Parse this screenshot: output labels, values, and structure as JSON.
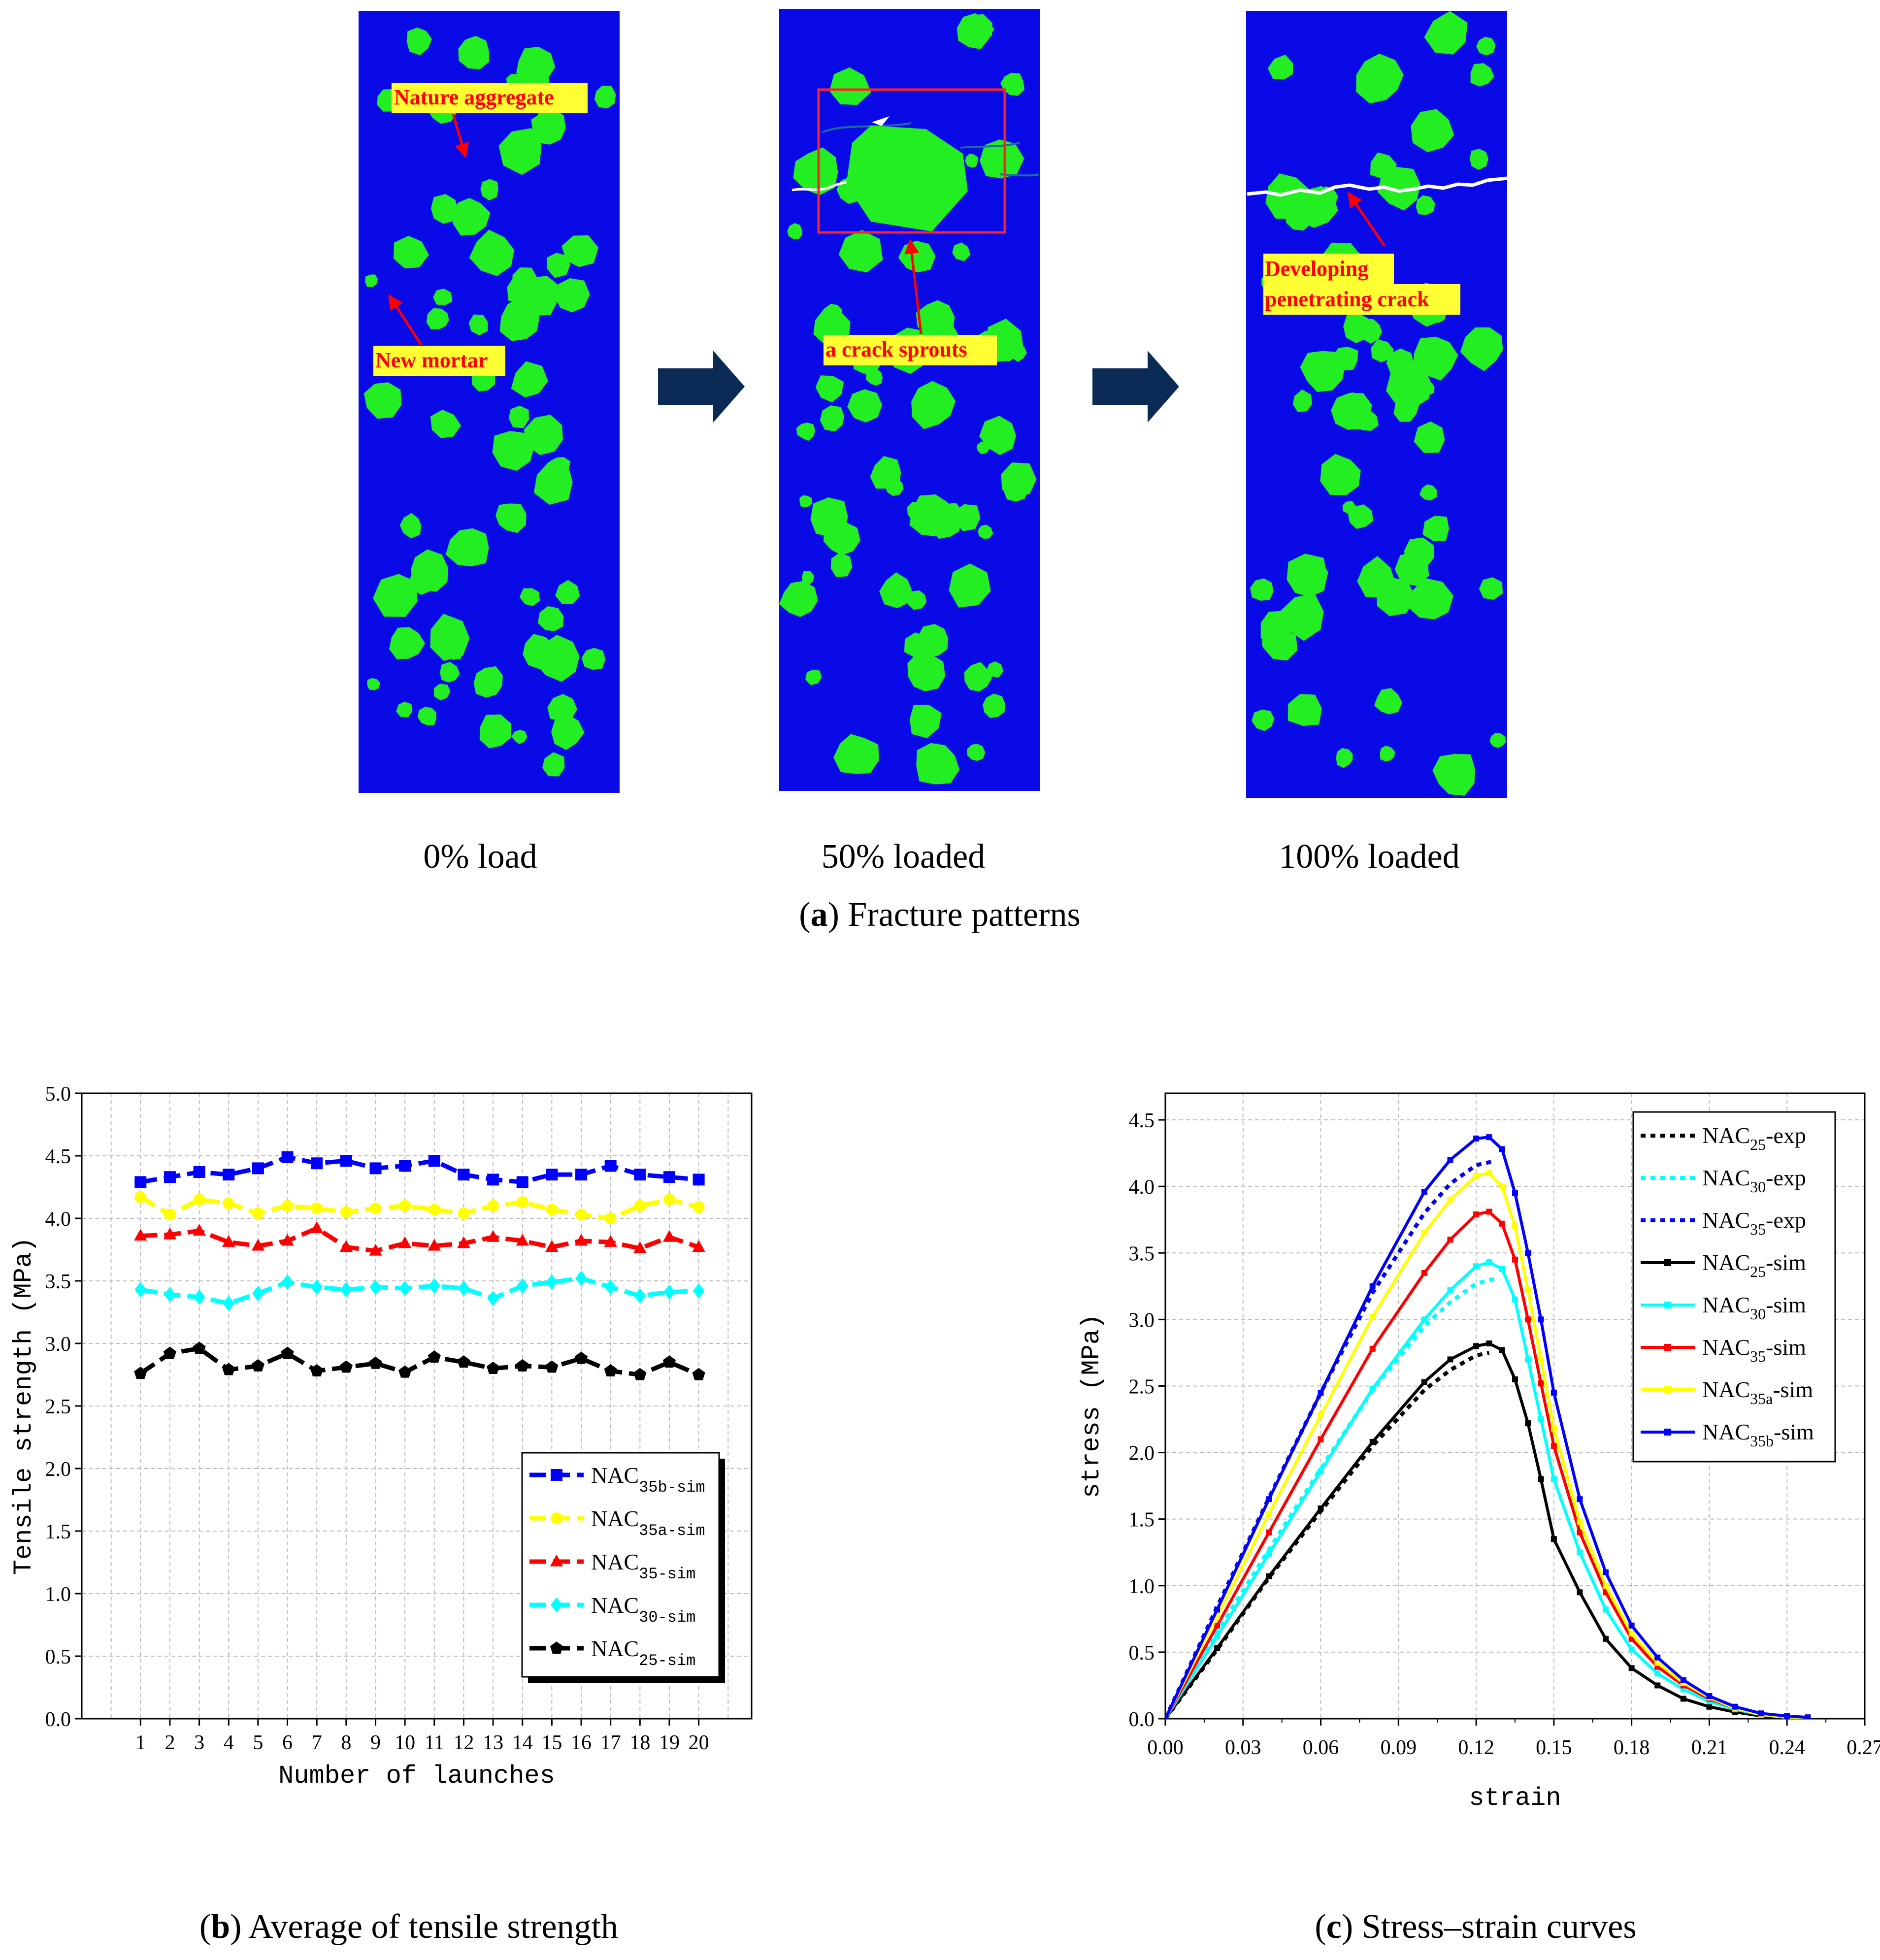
{
  "panel_a": {
    "caption_letter": "a",
    "caption_text": "Fracture patterns",
    "panels": [
      {
        "label": "0% load"
      },
      {
        "label": "50% loaded"
      },
      {
        "label": "100% loaded"
      }
    ],
    "annotations": {
      "nature_aggregate": "Nature aggregate",
      "new_mortar": "New mortar",
      "crack_sprouts": "a crack sprouts",
      "developing_line1": "Developing",
      "developing_line2": "penetrating crack"
    },
    "colors": {
      "mortar": "#0a0ae6",
      "aggregate": "#22ee22",
      "annotation_bg": "#ffff33",
      "annotation_text": "#ff0000",
      "arrow": "#0b2a55"
    }
  },
  "panel_b": {
    "caption_letter": "b",
    "caption_text": "Average of tensile strength"
  },
  "panel_c": {
    "caption_letter": "c",
    "caption_text": "Stress–strain curves"
  },
  "chart_data": [
    {
      "type": "line",
      "id": "b",
      "xlabel": "Number of launches",
      "ylabel": "Tensile strength (MPa)",
      "ylim": [
        0,
        5
      ],
      "yticks": [
        "0.0",
        "0.5",
        "1.0",
        "1.5",
        "2.0",
        "2.5",
        "3.0",
        "3.5",
        "4.0",
        "4.5",
        "5.0"
      ],
      "categories": [
        "1",
        "2",
        "3",
        "4",
        "5",
        "6",
        "7",
        "8",
        "9",
        "10",
        "11",
        "12",
        "13",
        "14",
        "15",
        "16",
        "17",
        "18",
        "19",
        "20"
      ],
      "grid": true,
      "legend_position": "bottom-right",
      "series": [
        {
          "name": "NAC",
          "sub": "35b-sim",
          "color": "#0000ff",
          "marker": "square",
          "values": [
            4.29,
            4.33,
            4.37,
            4.35,
            4.4,
            4.49,
            4.44,
            4.46,
            4.4,
            4.42,
            4.46,
            4.35,
            4.31,
            4.29,
            4.35,
            4.35,
            4.42,
            4.35,
            4.33,
            4.31
          ]
        },
        {
          "name": "NAC",
          "sub": "35a-sim",
          "color": "#ffff00",
          "marker": "circle",
          "values": [
            4.17,
            4.03,
            4.15,
            4.12,
            4.04,
            4.1,
            4.08,
            4.05,
            4.08,
            4.1,
            4.07,
            4.04,
            4.1,
            4.13,
            4.07,
            4.03,
            4.0,
            4.1,
            4.15,
            4.09
          ]
        },
        {
          "name": "NAC",
          "sub": "35-sim",
          "color": "#ff0000",
          "marker": "triangle",
          "values": [
            3.86,
            3.87,
            3.9,
            3.81,
            3.78,
            3.82,
            3.92,
            3.77,
            3.74,
            3.8,
            3.78,
            3.8,
            3.85,
            3.82,
            3.77,
            3.82,
            3.81,
            3.76,
            3.85,
            3.77
          ]
        },
        {
          "name": "NAC",
          "sub": "30-sim",
          "color": "#00ffff",
          "marker": "diamond",
          "values": [
            3.43,
            3.39,
            3.37,
            3.32,
            3.4,
            3.49,
            3.45,
            3.43,
            3.45,
            3.44,
            3.46,
            3.44,
            3.36,
            3.46,
            3.49,
            3.52,
            3.45,
            3.38,
            3.41,
            3.42
          ]
        },
        {
          "name": "NAC",
          "sub": "25-sim",
          "color": "#000000",
          "marker": "pentagon",
          "values": [
            2.76,
            2.92,
            2.96,
            2.79,
            2.82,
            2.92,
            2.78,
            2.81,
            2.84,
            2.77,
            2.89,
            2.85,
            2.8,
            2.82,
            2.81,
            2.88,
            2.78,
            2.75,
            2.85,
            2.75
          ]
        }
      ]
    },
    {
      "type": "line",
      "id": "c",
      "xlabel": "strain",
      "ylabel": "stress (MPa)",
      "xlim": [
        0,
        0.27
      ],
      "ylim": [
        0,
        4.7
      ],
      "xticks": [
        "0.00",
        "0.03",
        "0.06",
        "0.09",
        "0.12",
        "0.15",
        "0.18",
        "0.21",
        "0.24",
        "0.27"
      ],
      "yticks": [
        "0.0",
        "0.5",
        "1.0",
        "1.5",
        "2.0",
        "2.5",
        "3.0",
        "3.5",
        "4.0",
        "4.5"
      ],
      "grid": true,
      "legend_position": "top-right",
      "series": [
        {
          "name": "NAC",
          "sub": "25",
          "suffix": "-exp",
          "color": "#000000",
          "style": "dotted",
          "x": [
            0,
            0.02,
            0.04,
            0.06,
            0.08,
            0.1,
            0.11,
            0.12,
            0.125
          ],
          "y": [
            0,
            0.52,
            1.06,
            1.56,
            2.05,
            2.47,
            2.62,
            2.73,
            2.75
          ]
        },
        {
          "name": "NAC",
          "sub": "30",
          "suffix": "-exp",
          "color": "#00ffff",
          "style": "dotted",
          "x": [
            0,
            0.02,
            0.04,
            0.06,
            0.08,
            0.1,
            0.11,
            0.12,
            0.128
          ],
          "y": [
            0,
            0.65,
            1.27,
            1.88,
            2.47,
            2.95,
            3.13,
            3.27,
            3.31
          ]
        },
        {
          "name": "NAC",
          "sub": "35",
          "suffix": "-exp",
          "color": "#0000ff",
          "style": "dotted",
          "x": [
            0,
            0.02,
            0.04,
            0.06,
            0.08,
            0.1,
            0.11,
            0.12,
            0.127
          ],
          "y": [
            0,
            0.84,
            1.66,
            2.45,
            3.2,
            3.8,
            4.02,
            4.16,
            4.19
          ]
        },
        {
          "name": "NAC",
          "sub": "25",
          "suffix": "-sim",
          "color": "#000000",
          "style": "solid",
          "x": [
            0,
            0.02,
            0.04,
            0.06,
            0.08,
            0.1,
            0.11,
            0.12,
            0.125,
            0.13,
            0.135,
            0.14,
            0.145,
            0.15,
            0.16,
            0.17,
            0.18,
            0.19,
            0.2,
            0.21,
            0.22,
            0.23,
            0.24,
            0.248
          ],
          "y": [
            0,
            0.53,
            1.07,
            1.58,
            2.08,
            2.53,
            2.7,
            2.8,
            2.82,
            2.77,
            2.55,
            2.22,
            1.8,
            1.35,
            0.95,
            0.6,
            0.38,
            0.25,
            0.15,
            0.09,
            0.05,
            0.02,
            0.01,
            0.01
          ]
        },
        {
          "name": "NAC",
          "sub": "30",
          "suffix": "-sim",
          "color": "#00ffff",
          "style": "solid",
          "x": [
            0,
            0.02,
            0.04,
            0.06,
            0.08,
            0.1,
            0.11,
            0.12,
            0.125,
            0.13,
            0.135,
            0.14,
            0.145,
            0.15,
            0.16,
            0.17,
            0.18,
            0.19,
            0.2,
            0.21,
            0.22,
            0.23,
            0.24,
            0.248
          ],
          "y": [
            0,
            0.62,
            1.24,
            1.86,
            2.48,
            3.0,
            3.22,
            3.4,
            3.43,
            3.38,
            3.15,
            2.7,
            2.25,
            1.8,
            1.25,
            0.82,
            0.52,
            0.34,
            0.22,
            0.13,
            0.07,
            0.03,
            0.01,
            0.01
          ]
        },
        {
          "name": "NAC",
          "sub": "35",
          "suffix": "-sim",
          "color": "#ff0000",
          "style": "solid",
          "x": [
            0,
            0.02,
            0.04,
            0.06,
            0.08,
            0.1,
            0.11,
            0.12,
            0.125,
            0.13,
            0.135,
            0.14,
            0.145,
            0.15,
            0.16,
            0.17,
            0.18,
            0.19,
            0.2,
            0.21,
            0.22,
            0.23,
            0.24,
            0.248
          ],
          "y": [
            0,
            0.7,
            1.4,
            2.1,
            2.78,
            3.35,
            3.6,
            3.79,
            3.81,
            3.72,
            3.45,
            3.0,
            2.52,
            2.05,
            1.4,
            0.95,
            0.6,
            0.39,
            0.25,
            0.15,
            0.08,
            0.03,
            0.01,
            0.01
          ]
        },
        {
          "name": "NAC",
          "sub": "35a",
          "suffix": "-sim",
          "color": "#ffff00",
          "style": "solid",
          "x": [
            0,
            0.02,
            0.04,
            0.06,
            0.08,
            0.1,
            0.11,
            0.12,
            0.125,
            0.13,
            0.135,
            0.14,
            0.145,
            0.15,
            0.16,
            0.17,
            0.18,
            0.19,
            0.2,
            0.21,
            0.22,
            0.23,
            0.24,
            0.248
          ],
          "y": [
            0,
            0.77,
            1.54,
            2.28,
            3.02,
            3.65,
            3.9,
            4.08,
            4.1,
            4.0,
            3.7,
            3.22,
            2.7,
            2.18,
            1.48,
            1.0,
            0.64,
            0.42,
            0.27,
            0.16,
            0.08,
            0.03,
            0.01,
            0.01
          ]
        },
        {
          "name": "NAC",
          "sub": "35b",
          "suffix": "-sim",
          "color": "#0000ff",
          "style": "solid",
          "x": [
            0,
            0.02,
            0.04,
            0.06,
            0.08,
            0.1,
            0.11,
            0.12,
            0.125,
            0.13,
            0.135,
            0.14,
            0.145,
            0.15,
            0.16,
            0.17,
            0.18,
            0.19,
            0.2,
            0.21,
            0.22,
            0.23,
            0.24,
            0.248
          ],
          "y": [
            0,
            0.82,
            1.65,
            2.45,
            3.25,
            3.96,
            4.2,
            4.36,
            4.37,
            4.28,
            3.95,
            3.5,
            3.0,
            2.45,
            1.65,
            1.1,
            0.7,
            0.46,
            0.29,
            0.17,
            0.09,
            0.04,
            0.02,
            0.01
          ]
        }
      ]
    }
  ]
}
